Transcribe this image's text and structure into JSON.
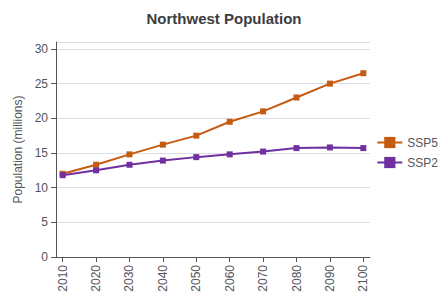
{
  "chart_data": {
    "type": "line",
    "title": "Northwest Population",
    "ylabel": "Population (millions)",
    "x": [
      2010,
      2020,
      2030,
      2040,
      2050,
      2060,
      2070,
      2080,
      2090,
      2100
    ],
    "series": [
      {
        "name": "SSP5",
        "color": "#C55A11",
        "values": [
          12.0,
          13.3,
          14.8,
          16.2,
          17.5,
          19.5,
          21.0,
          23.0,
          25.0,
          26.5
        ]
      },
      {
        "name": "SSP2",
        "color": "#7030A0",
        "values": [
          11.8,
          12.5,
          13.3,
          13.9,
          14.4,
          14.8,
          15.2,
          15.7,
          15.8,
          15.7
        ]
      }
    ],
    "xlim": [
      2008,
      2102
    ],
    "xticks": [
      2010,
      2020,
      2030,
      2040,
      2050,
      2060,
      2070,
      2080,
      2090,
      2100
    ],
    "ylim": [
      0,
      31
    ],
    "yticks": [
      0,
      5,
      10,
      15,
      20,
      25,
      30
    ],
    "grid": true,
    "legend": "right",
    "marker": "square"
  }
}
